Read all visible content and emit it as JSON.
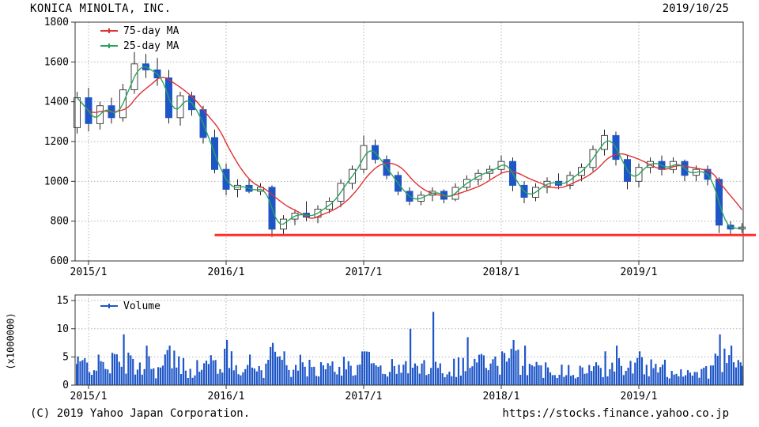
{
  "header": {
    "title": "KONICA MINOLTA, INC.",
    "date": "2019/10/25"
  },
  "footer": {
    "copyright": "(C) 2019 Yahoo Japan Corporation.",
    "url": "https://stocks.finance.yahoo.co.jp"
  },
  "chart_data": {
    "type": "candlestick+volume",
    "title": "KONICA MINOLTA, INC.",
    "date": "2019/10/25",
    "price_panel": {
      "ylim": [
        600,
        1800
      ],
      "y_ticks": [
        600,
        800,
        1000,
        1200,
        1400,
        1600,
        1800
      ],
      "x_tick_labels": [
        "2015/1",
        "2016/1",
        "2017/1",
        "2018/1",
        "2019/1"
      ],
      "x_tick_month_index": [
        1,
        13,
        25,
        37,
        49
      ],
      "grid": true,
      "legend": [
        {
          "label": "75-day MA",
          "color": "#e03131"
        },
        {
          "label": "25-day MA",
          "color": "#2aa25f"
        }
      ],
      "up_color": "#ffffff",
      "down_color": "#1e56c8",
      "wick_color": "#222222",
      "support_line": {
        "value": 730,
        "color": "#ff2f2f",
        "start_month_index": 12
      },
      "months_start": "2014/12",
      "months_end": "2019/10",
      "candles_ohlc": [
        [
          1270,
          1450,
          1240,
          1420
        ],
        [
          1420,
          1470,
          1250,
          1290
        ],
        [
          1290,
          1400,
          1260,
          1380
        ],
        [
          1380,
          1420,
          1290,
          1320
        ],
        [
          1320,
          1490,
          1300,
          1460
        ],
        [
          1460,
          1650,
          1440,
          1590
        ],
        [
          1590,
          1640,
          1520,
          1560
        ],
        [
          1560,
          1620,
          1480,
          1520
        ],
        [
          1520,
          1560,
          1290,
          1320
        ],
        [
          1320,
          1450,
          1280,
          1430
        ],
        [
          1430,
          1450,
          1330,
          1360
        ],
        [
          1360,
          1380,
          1190,
          1220
        ],
        [
          1220,
          1260,
          1040,
          1060
        ],
        [
          1060,
          1090,
          930,
          960
        ],
        [
          960,
          1010,
          920,
          980
        ],
        [
          980,
          1010,
          940,
          950
        ],
        [
          950,
          990,
          930,
          970
        ],
        [
          970,
          980,
          720,
          760
        ],
        [
          760,
          830,
          730,
          810
        ],
        [
          810,
          860,
          780,
          840
        ],
        [
          840,
          900,
          800,
          820
        ],
        [
          820,
          880,
          790,
          860
        ],
        [
          860,
          920,
          840,
          900
        ],
        [
          900,
          1010,
          870,
          990
        ],
        [
          990,
          1080,
          960,
          1060
        ],
        [
          1060,
          1230,
          1040,
          1180
        ],
        [
          1180,
          1210,
          1090,
          1110
        ],
        [
          1110,
          1130,
          1010,
          1030
        ],
        [
          1030,
          1050,
          930,
          950
        ],
        [
          950,
          970,
          880,
          900
        ],
        [
          900,
          950,
          880,
          930
        ],
        [
          930,
          970,
          900,
          950
        ],
        [
          950,
          960,
          890,
          910
        ],
        [
          910,
          990,
          900,
          970
        ],
        [
          970,
          1030,
          950,
          1010
        ],
        [
          1010,
          1060,
          980,
          1040
        ],
        [
          1040,
          1080,
          1010,
          1060
        ],
        [
          1060,
          1130,
          1040,
          1100
        ],
        [
          1100,
          1120,
          950,
          980
        ],
        [
          980,
          1000,
          890,
          920
        ],
        [
          920,
          990,
          900,
          970
        ],
        [
          970,
          1020,
          940,
          1000
        ],
        [
          1000,
          1040,
          960,
          980
        ],
        [
          980,
          1050,
          960,
          1030
        ],
        [
          1030,
          1090,
          1000,
          1070
        ],
        [
          1070,
          1180,
          1050,
          1160
        ],
        [
          1160,
          1260,
          1130,
          1230
        ],
        [
          1230,
          1250,
          1080,
          1110
        ],
        [
          1110,
          1130,
          960,
          1000
        ],
        [
          1000,
          1090,
          970,
          1070
        ],
        [
          1070,
          1120,
          1040,
          1100
        ],
        [
          1100,
          1130,
          1030,
          1060
        ],
        [
          1060,
          1120,
          1040,
          1100
        ],
        [
          1100,
          1110,
          1000,
          1030
        ],
        [
          1030,
          1080,
          1000,
          1060
        ],
        [
          1060,
          1080,
          980,
          1010
        ],
        [
          1010,
          1020,
          740,
          780
        ],
        [
          780,
          800,
          730,
          760
        ],
        [
          760,
          790,
          740,
          770
        ]
      ],
      "ma25_window_days": 25,
      "ma75_window_days": 75
    },
    "volume_panel": {
      "ylim": [
        0,
        16
      ],
      "y_ticks": [
        0,
        5,
        10,
        15
      ],
      "axis_label": "(x1000000)",
      "legend": {
        "label": "Volume",
        "color": "#1e56c8"
      },
      "color": "#1e56c8",
      "monthly_base": [
        3.5,
        4,
        3.5,
        4,
        4.5,
        3.5,
        4,
        3,
        4.5,
        3.5,
        3,
        3.5,
        4,
        4.5,
        4,
        3.5,
        3,
        5,
        4,
        3.5,
        3,
        3,
        3,
        3.5,
        3.5,
        4,
        3.5,
        3,
        3,
        3,
        3,
        4.5,
        3,
        3.5,
        4,
        4.5,
        3.5,
        4,
        4.5,
        4,
        3,
        3,
        3,
        3,
        2.5,
        3,
        3.5,
        4,
        3.5,
        3.5,
        3,
        3,
        2.5,
        2.5,
        2.5,
        2.5,
        4.5,
        3.5,
        3
      ],
      "spikes": [
        {
          "m": 4,
          "v": 9
        },
        {
          "m": 6,
          "v": 7
        },
        {
          "m": 8,
          "v": 7
        },
        {
          "m": 13,
          "v": 8
        },
        {
          "m": 17,
          "v": 7.5
        },
        {
          "m": 18,
          "v": 6
        },
        {
          "m": 25,
          "v": 6
        },
        {
          "m": 29,
          "v": 10
        },
        {
          "m": 31,
          "v": 13
        },
        {
          "m": 34,
          "v": 8.5
        },
        {
          "m": 37,
          "v": 6
        },
        {
          "m": 38,
          "v": 8
        },
        {
          "m": 39,
          "v": 7
        },
        {
          "m": 46,
          "v": 6
        },
        {
          "m": 47,
          "v": 7
        },
        {
          "m": 49,
          "v": 6
        },
        {
          "m": 56,
          "v": 9
        },
        {
          "m": 57,
          "v": 7
        }
      ]
    }
  }
}
